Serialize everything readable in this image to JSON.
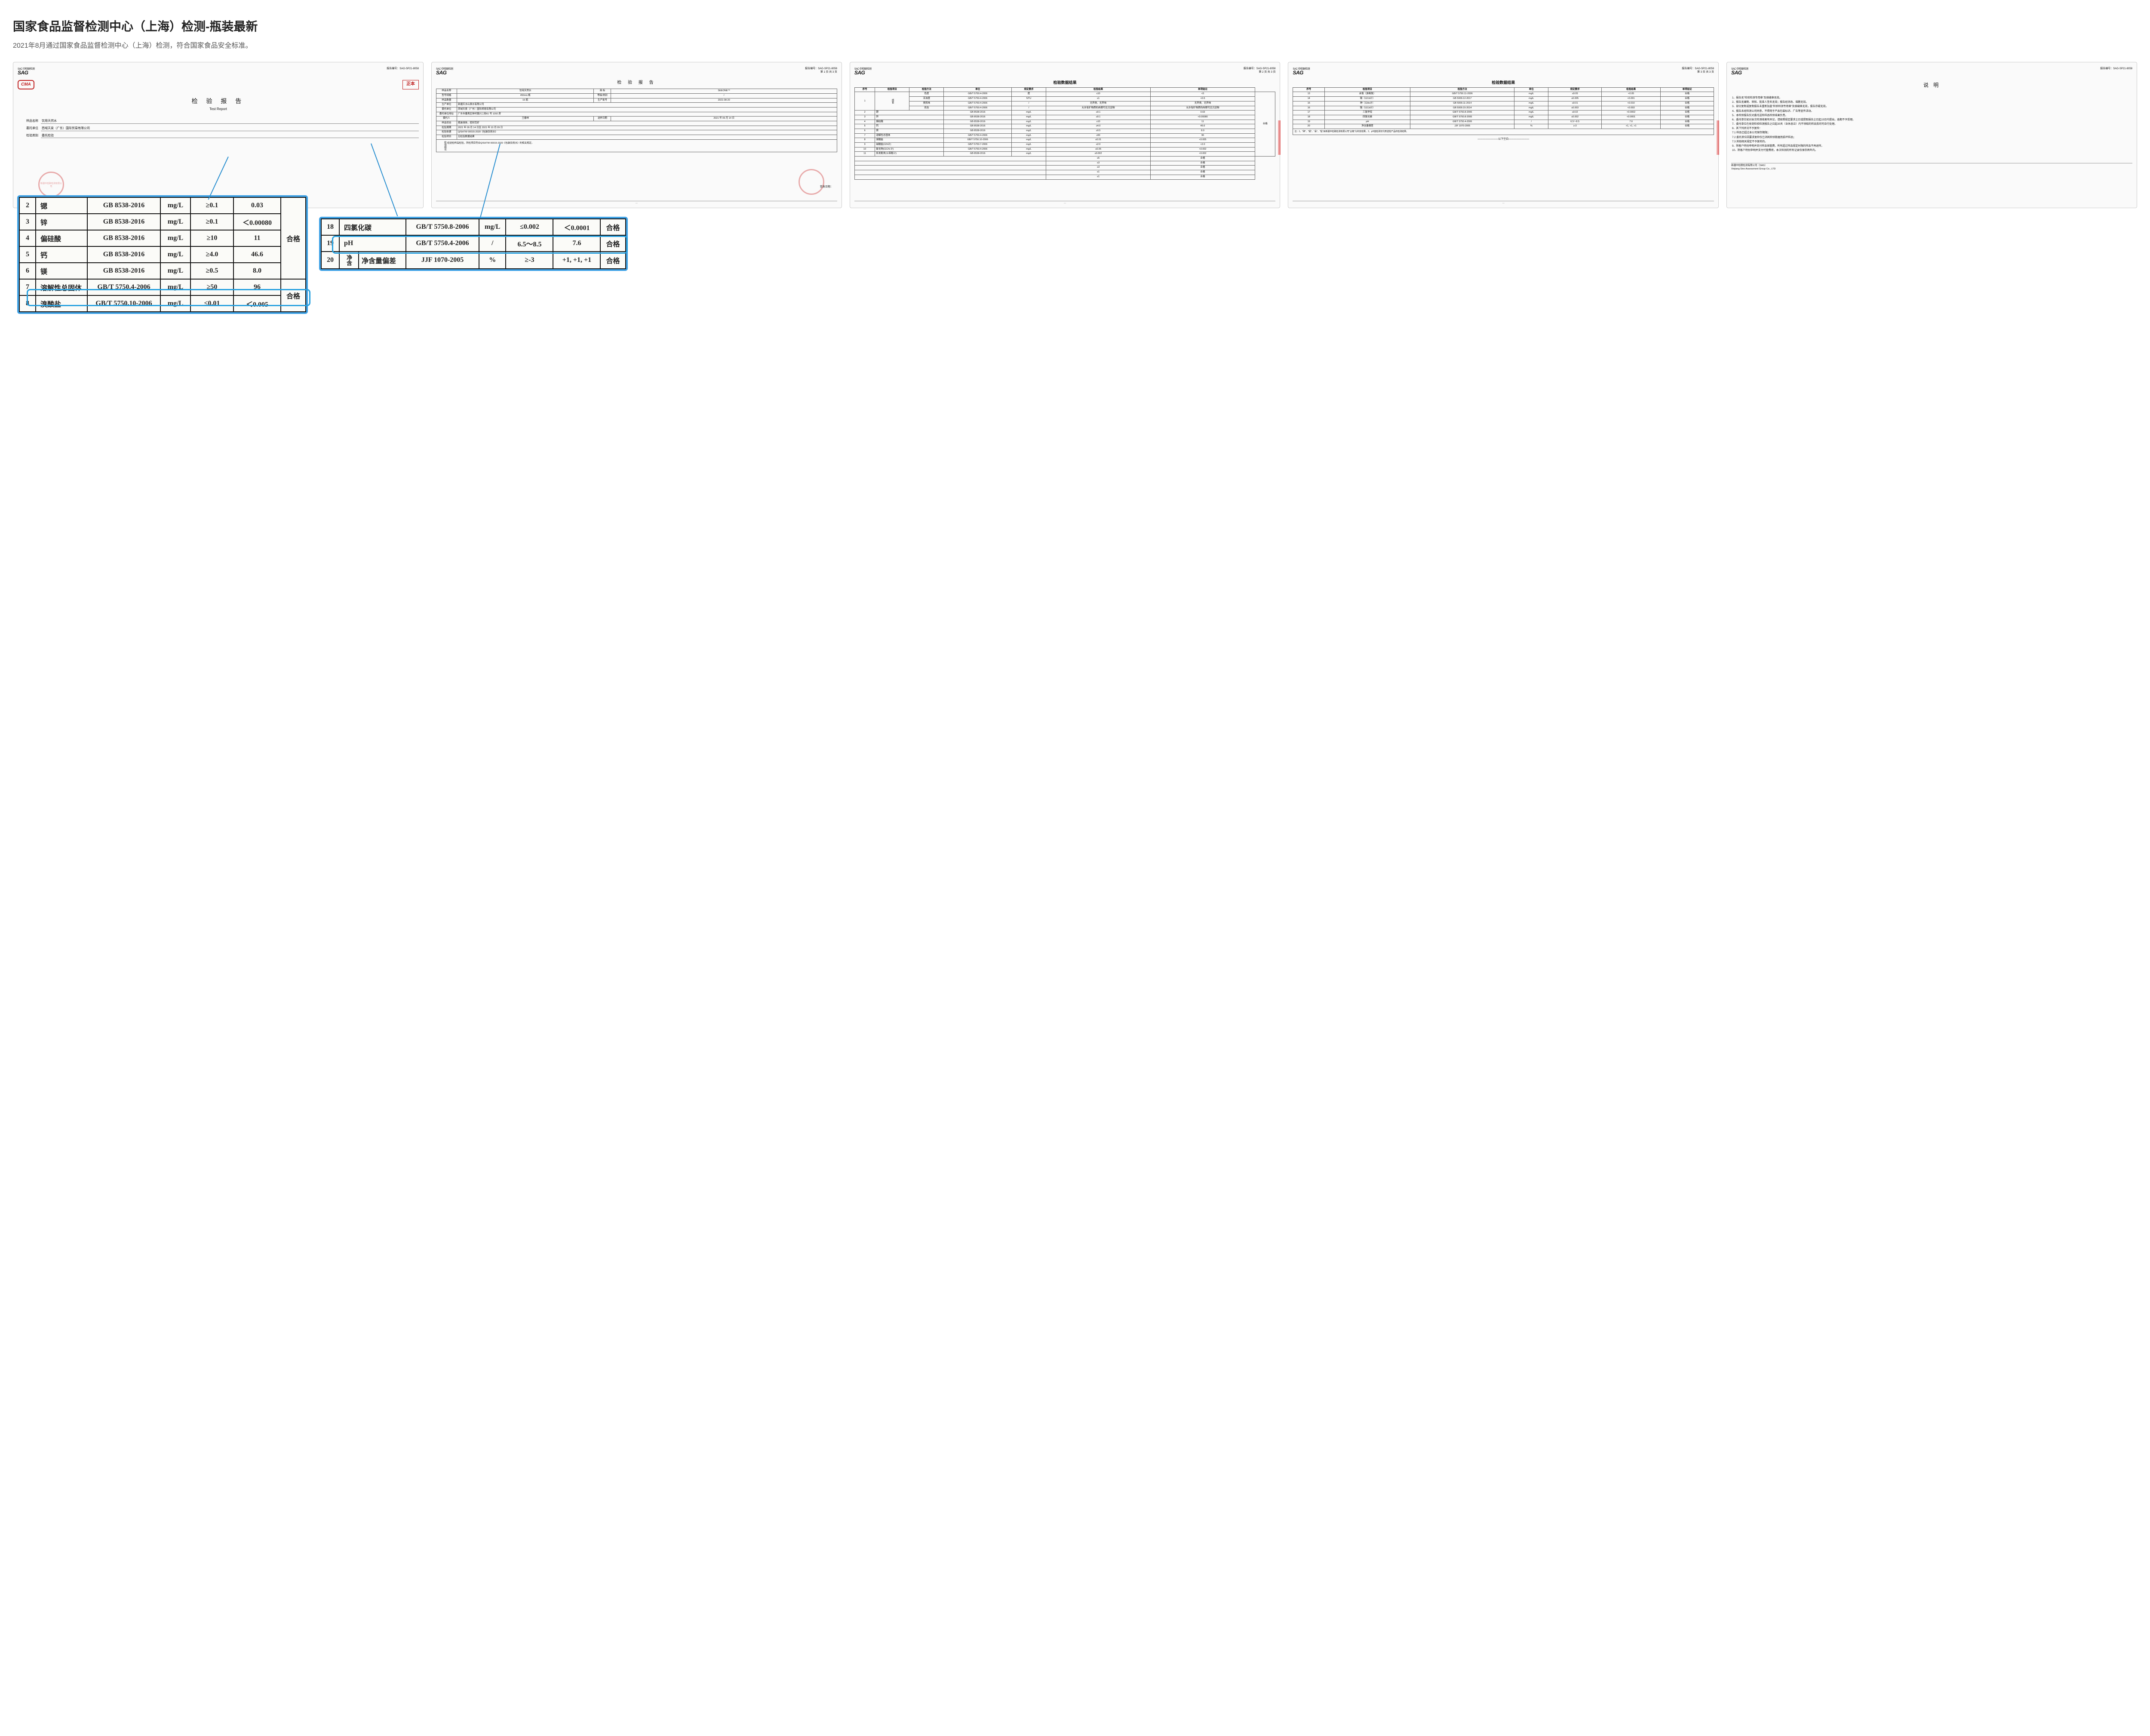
{
  "header": {
    "title": "国家食品监督检测中心（上海）检测-瓶装最新",
    "subtitle": "2021年8月通过国家食品监督检测中心（上海）检测，符合国家食品安全标准。"
  },
  "common": {
    "sag_pre": "SAC 中检联检测",
    "sag": "SAG",
    "report_no_label": "报告编号：",
    "report_no": "SAG-SP21-8058"
  },
  "doc1": {
    "cma": "CMA",
    "zheng_ben": "正本",
    "title": "检 验 报 告",
    "title_en": "Test Report",
    "fields": [
      {
        "label": "样品名称",
        "value": "饮用天然水"
      },
      {
        "label": "委托单位",
        "value": "西域天泉（广东）国际贸易有限公司"
      },
      {
        "label": "检验类别",
        "value": "委托检验"
      }
    ],
    "org": "新疆中检联检测有限公司"
  },
  "doc2": {
    "page": "第 1 页 共 3 页",
    "title": "检 验 报 告",
    "rows": [
      [
        "样品名称",
        "饮用天然水",
        "商 标",
        "SEEONE™"
      ],
      [
        "型号规格",
        "450mL/瓶",
        "等级/类别",
        "/"
      ],
      [
        "样品数量",
        "15 瓶",
        "生产批号",
        "2021-08-20"
      ],
      [
        "生产单位",
        "新疆天水山泉水有限公司",
        "",
        ""
      ],
      [
        "委托单位",
        "西域天泉（广东）国际贸易有限公司",
        "",
        ""
      ],
      [
        "委托单位地址",
        "广东市番禺区钟村镇兴二街61 号 1202 房",
        "",
        ""
      ],
      [
        "委托人",
        "王春林",
        "送样日期",
        "2021 年 09 月 14 日"
      ],
      [
        "样品状态",
        "瓶装液体，密封完好",
        "",
        ""
      ],
      [
        "检验周期",
        "2021 年 09 月 14 日至 2021 年 10 月 09 日",
        "",
        ""
      ],
      [
        "检验依据",
        "Q/SHTW 00015-2020《包装饮用水》",
        "",
        ""
      ],
      [
        "检验项目",
        "见检验数据结果",
        "",
        ""
      ]
    ],
    "conclusion_label": "检验结论",
    "conclusion": "经送检样品检验，所检项目符合Q/SHTW 00015-2020《包装饮用水》的相关规定。",
    "issue": "签发日期："
  },
  "doc3": {
    "page": "第 2 页 共 3 页",
    "section": "检验数据结果",
    "headers": [
      "序号",
      "检验项目",
      "检验方法",
      "单位",
      "规定要求",
      "检验结果",
      "单项结论"
    ],
    "group_label": "感官",
    "group_rows": [
      [
        "色度",
        "GB/T 5750.4-2006",
        "度",
        "≤10",
        "<5"
      ],
      [
        "浑浊度",
        "GB/T 5750.4-2006",
        "NTU",
        "≤1",
        "<0.5"
      ],
      [
        "臭和味",
        "GB/T 5750.4-2006",
        "/",
        "无异臭、无异味",
        "无异臭、无异味"
      ],
      [
        "状态",
        "GB/T 5750.4-2006",
        "/",
        "允许有矿物质的肉眼可见沉淀物",
        "允许有矿物质的肉眼可见沉淀物"
      ]
    ],
    "rows": [
      [
        "2",
        "锶",
        "GB 8538-2016",
        "mg/L",
        "≥0.1",
        "0.03"
      ],
      [
        "3",
        "锌",
        "GB 8538-2016",
        "mg/L",
        "≥0.1",
        "<0.00080"
      ],
      [
        "4",
        "偏硅酸",
        "GB 8538-2016",
        "mg/L",
        "≥10",
        "11"
      ],
      [
        "5",
        "钙",
        "GB 8538-2016",
        "mg/L",
        "≥4.0",
        "46.6"
      ],
      [
        "6",
        "镁",
        "GB 8538-2016",
        "mg/L",
        "≥0.5",
        "8.0"
      ],
      [
        "7",
        "溶解性总固体",
        "GB/T 5750.4-2006",
        "mg/L",
        "≥50",
        "96"
      ],
      [
        "8",
        "溴酸盐",
        "GB/T 5750.10-2006",
        "mg/L",
        "≤0.01",
        "<0.005"
      ],
      [
        "9",
        "硝酸盐(以N计)",
        "GB/T 5750.7-2006",
        "mg/L",
        "≤2.0",
        "<2.0"
      ],
      [
        "10",
        "氰化物(以CN-计)",
        "GB/T 5750.4-2006",
        "mg/L",
        "≤0.05",
        "<0.002"
      ],
      [
        "11",
        "挥发酚类(以苯酚计)",
        "GB 8538-2016",
        "mg/L",
        "≤0.002",
        "<0.002"
      ]
    ],
    "spans": [
      "≤5",
      "≤3",
      "≤3",
      "≤1",
      "≤1"
    ],
    "pass": "合格"
  },
  "doc4": {
    "page": "第 3 页 共 3 页",
    "section": "检验数据结果",
    "headers": [
      "序号",
      "检验项目",
      "检验方法",
      "单位",
      "规定要求",
      "检验结果",
      "单项结论"
    ],
    "rows": [
      [
        "13",
        "余氯（游离氯）",
        "GB/T 5750.11-2006",
        "mg/L",
        "≤0.05",
        "<0.05",
        "合格"
      ],
      [
        "14",
        "镉（以Cd计）",
        "GB 5009.12-2017",
        "mg/L",
        "≤0.005",
        "<0.001",
        "合格"
      ],
      [
        "15",
        "砷（以As计）",
        "GB 5009.11-2014",
        "mg/L",
        "≤0.01",
        "<0.010",
        "合格"
      ],
      [
        "16",
        "镉（以Cd计）",
        "GB 5009.15-2014",
        "mg/L",
        "≤0.003",
        "<0.003",
        "合格"
      ],
      [
        "17",
        "三氯甲烷",
        "GB/T 5750.8-2006",
        "mg/L",
        "≤0.02",
        "<0.0002",
        "合格"
      ],
      [
        "18",
        "四氯化碳",
        "GB/T 5750.8-2006",
        "mg/L",
        "≤0.002",
        "<0.0001",
        "合格"
      ],
      [
        "19",
        "pH",
        "GB/T 5750.4-2006",
        "/",
        "6.5～8.5",
        "7.6",
        "合格"
      ]
    ],
    "net_row": [
      "20",
      "净含量",
      "净含量偏差",
      "JJF 1070-2005",
      "%",
      "≥-3",
      "+1, +1, +1",
      "合格"
    ],
    "note": "注：1、\"砷\"、\"镉\"、\"汞\"、\"铅\"由新疆中检联检测有限公司\"合格\"为判定结果。2、pH值检测仅代表送检产品的检测结果。",
    "blank": "————————以下空白————————"
  },
  "doc5": {
    "title": "说    明",
    "notes": [
      "1、报告无\"检验检测专用章\"及骑缝章无效。",
      "2、报告无编制、审核、批准人签名无效；报告经涂改、增删无效。",
      "3、部分复制或复制报告未重新加盖\"检验检测专用章\"及骑缝章无效，报告存疑无效。",
      "4、报告未经检测公司同意，不得用于产品包装标识、广告等宣传活动。",
      "5、本检验报告仅对委托送检样品检验结果负责。",
      "6、委托单位如对本次检测结果有异议，请按照规定要求之日或提取报告之日起15日内提出，逾期不予受理。",
      "7、委托单位在收到检验检测报告之日起30天（含休息日）内不领取的样品我司可自行处理。",
      "8、其下列状况不予复检：",
      "7.1 样品已超过本公司保存期限；",
      "7.2 委托单位因要求复检仅已消耗检验数据而损坏样品；",
      "7.3 其他相关规定不予复检的。",
      "9、除客户特别申明并支付样品保管费，所有超过样品规定时限的样品不再退样。",
      "10、除客户特别申明并支付代管费用，本次检测的所有记录仅保存两年内。"
    ],
    "org1": "新疆中检联检测有限公司（SAG）",
    "org2": "Xinjiang Sino Assessment Group Co., LTD"
  },
  "zoom_left": {
    "rows": [
      [
        "2",
        "锶",
        "GB 8538-2016",
        "mg/L",
        "≥0.1",
        "0.03",
        ""
      ],
      [
        "3",
        "锌",
        "GB 8538-2016",
        "mg/L",
        "≥0.1",
        "＜0.00080",
        ""
      ],
      [
        "4",
        "偏硅酸",
        "GB 8538-2016",
        "mg/L",
        "≥10",
        "11",
        "合格"
      ],
      [
        "5",
        "钙",
        "GB 8538-2016",
        "mg/L",
        "≥4.0",
        "46.6",
        ""
      ],
      [
        "6",
        "镁",
        "GB 8538-2016",
        "mg/L",
        "≥0.5",
        "8.0",
        ""
      ],
      [
        "7",
        "溶解性总固体",
        "GB/T 5750.4-2006",
        "mg/L",
        "≥50",
        "96",
        ""
      ],
      [
        "8",
        "溴酸盐",
        "GB/T 5750.10-2006",
        "mg/L",
        "≤0.01",
        "＜0.005",
        "合格"
      ]
    ]
  },
  "zoom_right": {
    "rows": [
      [
        "18",
        "四氯化碳",
        "GB/T 5750.8-2006",
        "mg/L",
        "≤0.002",
        "＜0.0001",
        "合格"
      ],
      [
        "19",
        "pH",
        "GB/T 5750.4-2006",
        "/",
        "6.5～8.5",
        "7.6",
        "合格"
      ],
      [
        "20",
        "净含量偏差",
        "JJF 1070-2005",
        "%",
        "≥-3",
        "+1, +1, +1",
        "合格"
      ]
    ],
    "net_label": "净含"
  },
  "colors": {
    "highlight_border": "#3fa2e6",
    "stamp": "#c02020",
    "text": "#222222",
    "subtext": "#555555"
  }
}
